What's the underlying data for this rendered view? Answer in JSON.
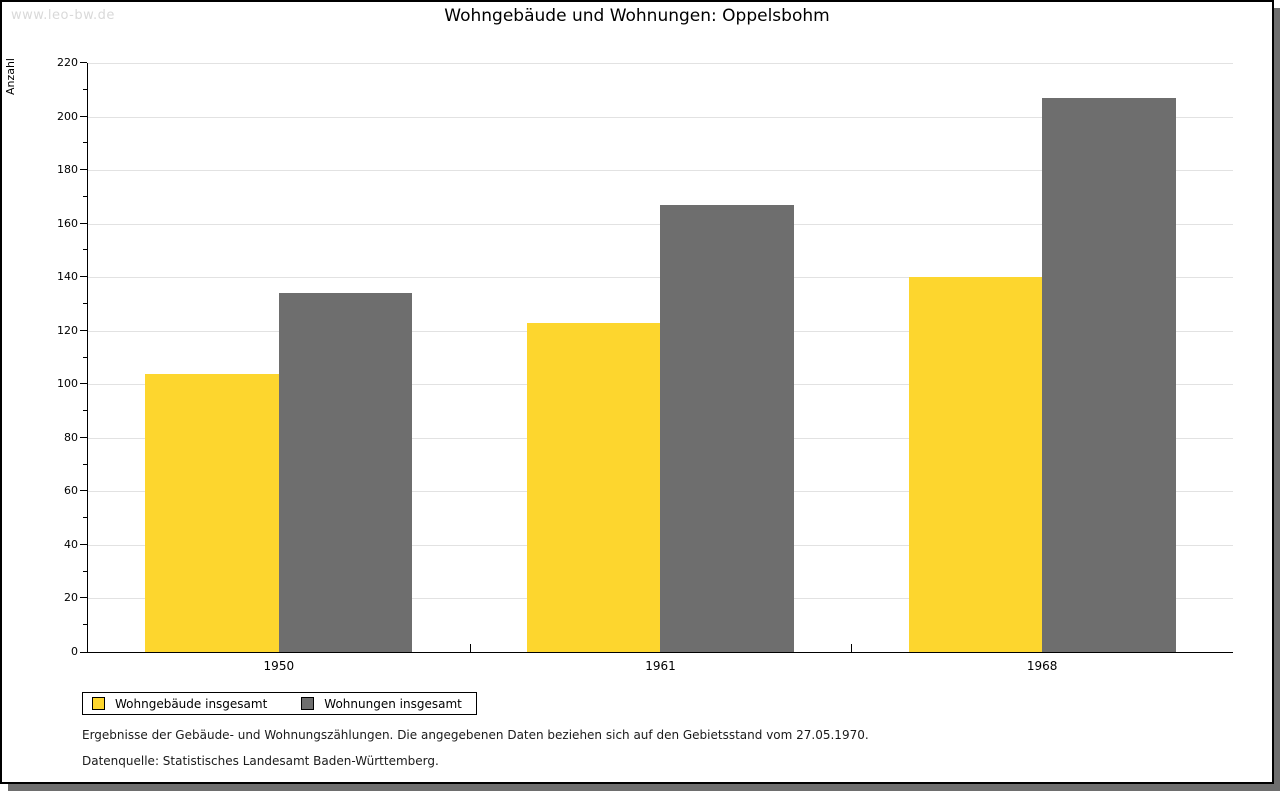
{
  "watermark": "www.leo-bw.de",
  "chart_data": {
    "type": "bar",
    "title": "Wohngebäude und Wohnungen: Oppelsbohm",
    "categories": [
      "1950",
      "1961",
      "1968"
    ],
    "series": [
      {
        "name": "Wohngebäude insgesamt",
        "color": "#fdd62e",
        "values": [
          104,
          123,
          140
        ]
      },
      {
        "name": "Wohnungen insgesamt",
        "color": "#6e6e6e",
        "values": [
          134,
          167,
          207
        ]
      }
    ],
    "xlabel": "",
    "ylabel": "Anzahl",
    "ylim": [
      0,
      220
    ],
    "ytick_step": 20,
    "ytick_minor_step": 10,
    "grid": true,
    "gridline_color": "#e2e2e2",
    "legend_position": "bottom-left"
  },
  "footnotes": [
    "Ergebnisse der Gebäude- und Wohnungszählungen. Die angegebenen Daten beziehen sich auf den Gebietsstand vom 27.05.1970.",
    "Datenquelle: Statistisches Landesamt Baden-Württemberg."
  ],
  "colors": {
    "series_yellow": "#fdd62e",
    "series_gray": "#6e6e6e",
    "gridline": "#e2e2e2",
    "watermark": "#d9d9d9",
    "frame_border": "#000000",
    "frame_shadow": "#6e6e6e"
  }
}
